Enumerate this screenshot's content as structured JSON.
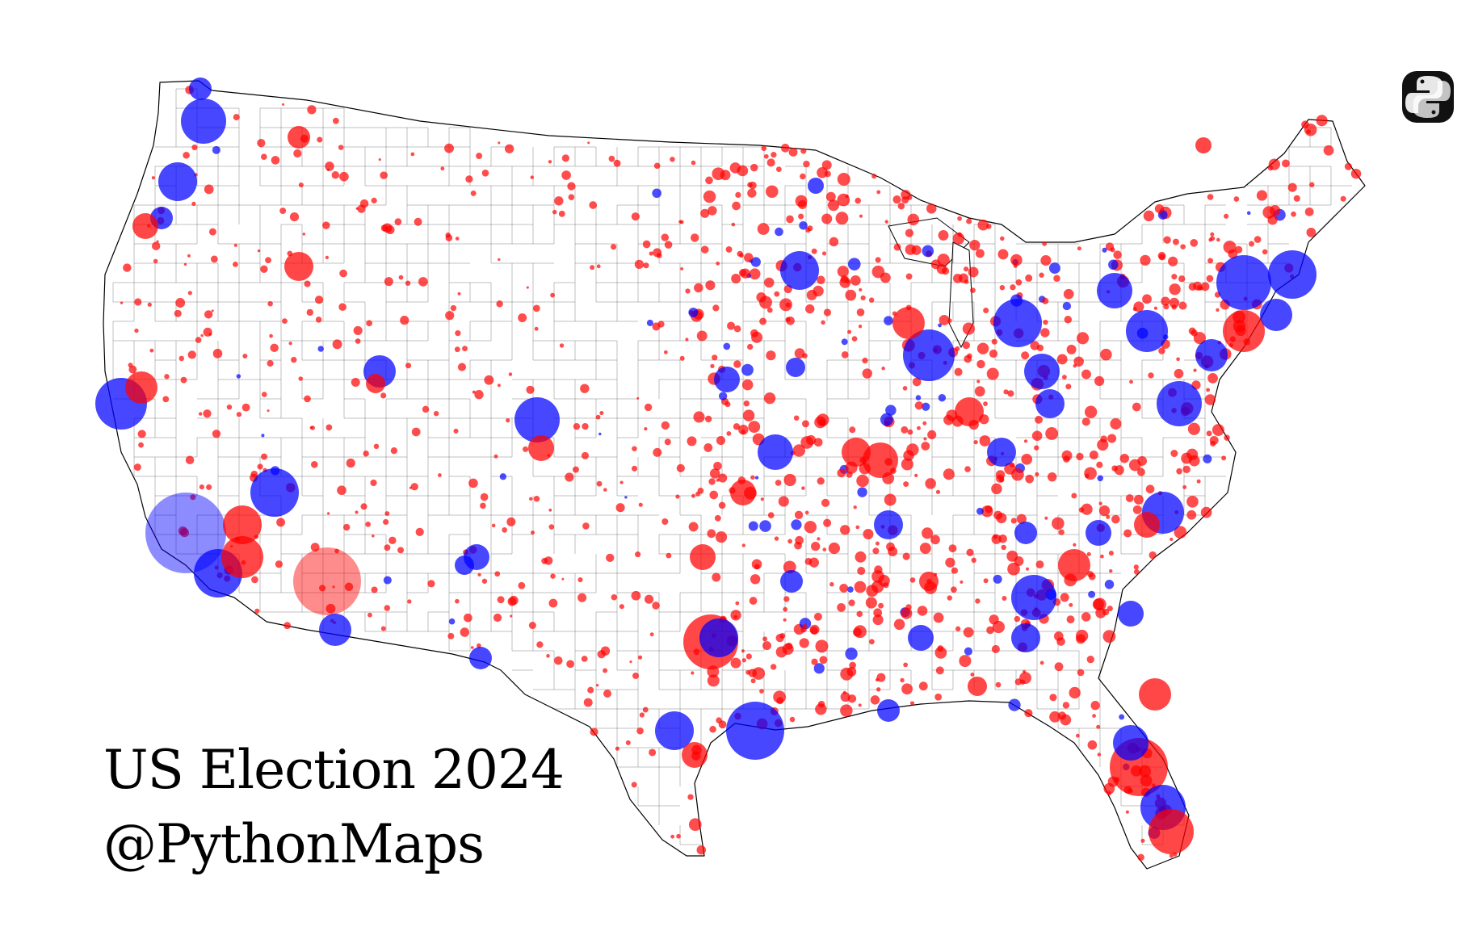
{
  "title": "US Election 2024",
  "credit": "@PythonMaps",
  "logo": {
    "icon": "python-logo-icon"
  },
  "colors": {
    "republican": "#ff0000",
    "democrat": "#0000ff",
    "county_border": "#000000",
    "background": "#ffffff"
  },
  "legend": {
    "Republican": "#ff0000",
    "Democrat": "#0000ff"
  }
}
